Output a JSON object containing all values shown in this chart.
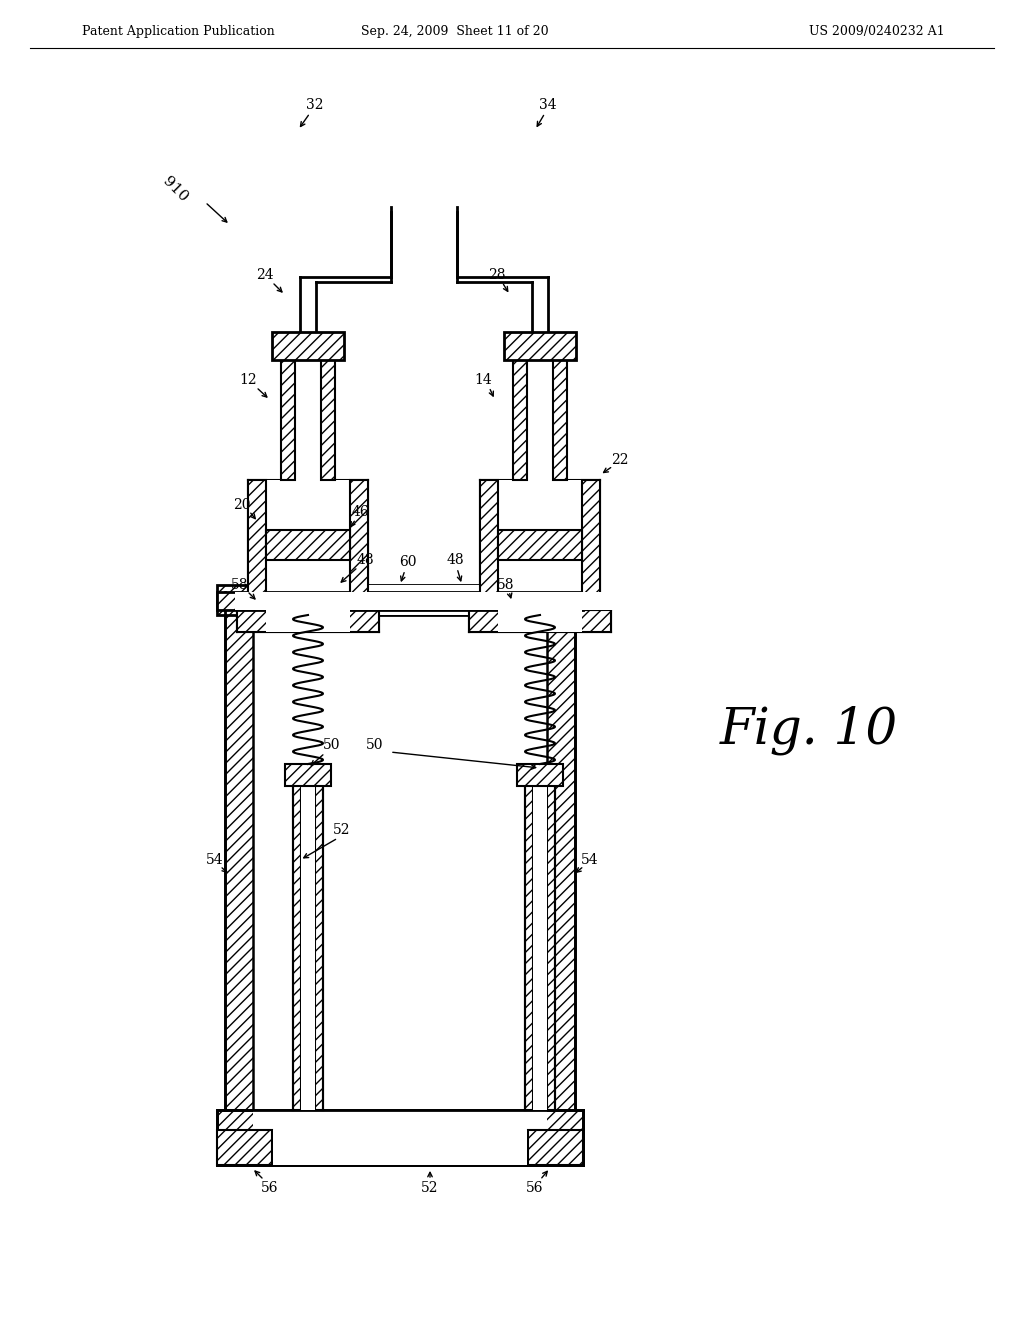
{
  "header_left": "Patent Application Publication",
  "header_mid": "Sep. 24, 2009  Sheet 11 of 20",
  "header_right": "US 2009/0240232 A1",
  "fig_label": "Fig. 10",
  "bg": "#ffffff"
}
